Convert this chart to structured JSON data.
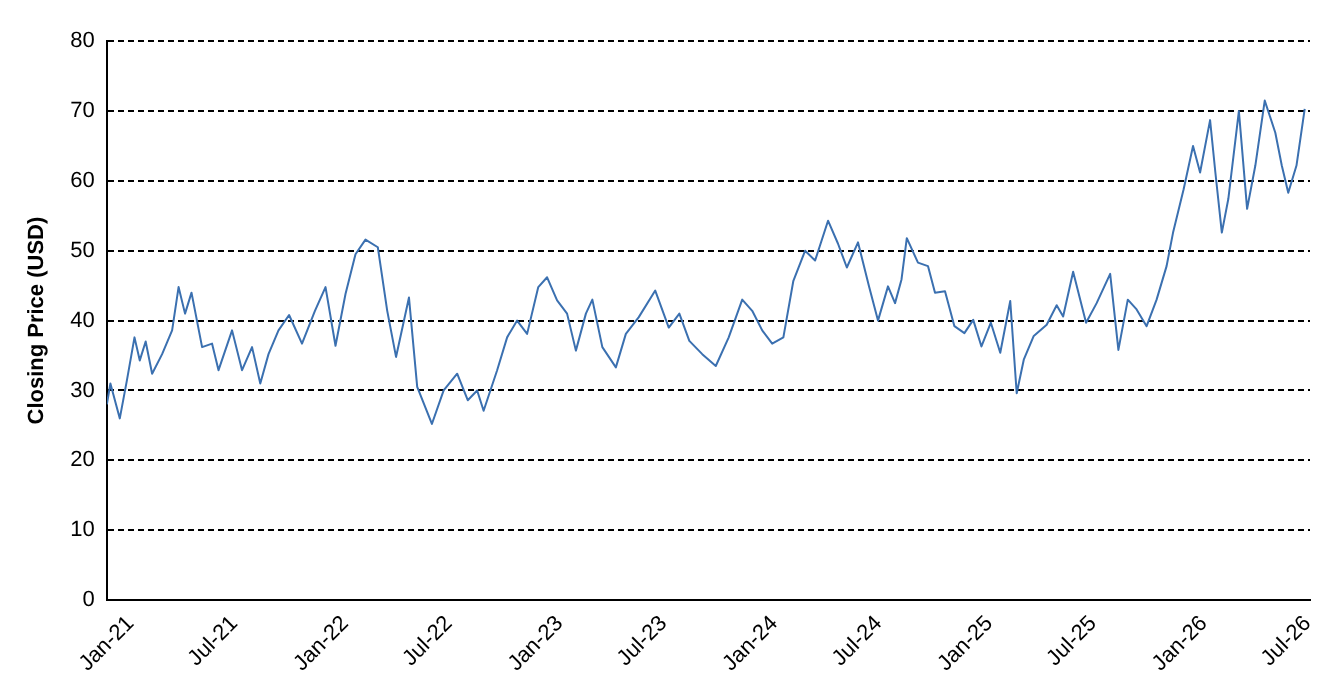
{
  "chart_data": {
    "type": "line",
    "ylabel": "Closing Price (USD)",
    "grid": "y",
    "legend": false,
    "x": [
      "2021-01-01",
      "2021-01-07",
      "2021-01-23",
      "2021-02-04",
      "2021-02-17",
      "2021-02-26",
      "2021-03-08",
      "2021-03-19",
      "2021-04-05",
      "2021-04-22",
      "2021-05-03",
      "2021-05-14",
      "2021-05-25",
      "2021-06-12",
      "2021-06-29",
      "2021-07-10",
      "2021-08-02",
      "2021-08-19",
      "2021-09-05",
      "2021-09-19",
      "2021-10-03",
      "2021-10-20",
      "2021-11-07",
      "2021-11-29",
      "2021-12-21",
      "2022-01-08",
      "2022-01-25",
      "2022-02-11",
      "2022-02-28",
      "2022-03-17",
      "2022-04-07",
      "2022-04-23",
      "2022-05-08",
      "2022-05-30",
      "2022-06-13",
      "2022-07-08",
      "2022-07-28",
      "2022-08-20",
      "2022-09-07",
      "2022-09-23",
      "2022-10-04",
      "2022-10-27",
      "2022-11-13",
      "2022-11-30",
      "2022-12-17",
      "2023-01-05",
      "2023-01-20",
      "2023-02-06",
      "2023-02-23",
      "2023-03-10",
      "2023-03-27",
      "2023-04-07",
      "2023-04-24",
      "2023-05-17",
      "2023-06-03",
      "2023-06-25",
      "2023-07-23",
      "2023-08-15",
      "2023-09-02",
      "2023-09-19",
      "2023-10-11",
      "2023-11-03",
      "2023-11-25",
      "2023-12-18",
      "2024-01-04",
      "2024-01-21",
      "2024-02-07",
      "2024-02-26",
      "2024-03-14",
      "2024-04-03",
      "2024-04-20",
      "2024-05-12",
      "2024-05-29",
      "2024-06-13",
      "2024-07-02",
      "2024-07-21",
      "2024-08-05",
      "2024-08-22",
      "2024-09-03",
      "2024-09-14",
      "2024-09-23",
      "2024-10-12",
      "2024-10-29",
      "2024-11-10",
      "2024-11-27",
      "2024-12-13",
      "2024-12-30",
      "2025-01-14",
      "2025-01-28",
      "2025-02-13",
      "2025-03-01",
      "2025-03-18",
      "2025-03-29",
      "2025-04-10",
      "2025-04-27",
      "2025-05-19",
      "2025-06-05",
      "2025-06-16",
      "2025-07-03",
      "2025-07-25",
      "2025-08-12",
      "2025-09-04",
      "2025-09-18",
      "2025-10-04",
      "2025-10-19",
      "2025-11-05",
      "2025-11-22",
      "2025-12-09",
      "2025-12-20",
      "2026-01-07",
      "2026-01-23",
      "2026-02-04",
      "2026-02-21",
      "2026-03-02",
      "2026-03-13",
      "2026-03-24",
      "2026-04-11",
      "2026-04-25",
      "2026-05-09",
      "2026-05-25",
      "2026-06-12",
      "2026-06-23",
      "2026-07-04",
      "2026-07-18",
      "2026-08-01"
    ],
    "series": [
      {
        "color": "#3b70b0",
        "values": [
          28,
          31,
          26,
          31.4,
          37.6,
          34.3,
          37,
          32.4,
          35.2,
          38.6,
          44.8,
          41,
          44,
          36.2,
          36.7,
          32.9,
          38.6,
          32.9,
          36.2,
          31,
          35.2,
          38.6,
          40.8,
          36.7,
          41.4,
          44.8,
          36.4,
          43.8,
          49.5,
          51.6,
          50.5,
          41.4,
          34.8,
          43.3,
          30.5,
          25.2,
          30,
          32.4,
          28.6,
          30,
          27.1,
          32.9,
          37.6,
          40,
          38.1,
          44.8,
          46.2,
          42.9,
          41,
          35.7,
          41,
          43,
          36.2,
          33.3,
          38.1,
          40.5,
          44.3,
          39,
          41,
          37.1,
          35.2,
          33.5,
          37.6,
          43,
          41.4,
          38.6,
          36.7,
          37.6,
          45.7,
          50,
          48.6,
          54.3,
          51,
          47.6,
          51.2,
          44.8,
          40,
          44.9,
          42.5,
          45.9,
          51.8,
          48.3,
          47.8,
          44,
          44.2,
          39.2,
          38.2,
          40.1,
          36.3,
          39.7,
          35.4,
          42.8,
          29.6,
          34.4,
          37.8,
          39.4,
          42.2,
          40.6,
          47,
          39.7,
          42.5,
          46.7,
          35.8,
          43,
          41.6,
          39.2,
          43,
          47.8,
          52.6,
          58.8,
          65,
          61.2,
          68.7,
          61.2,
          52.6,
          57.4,
          70,
          56,
          62.2,
          71.5,
          66.9,
          62.2,
          58.3,
          62.2,
          70.3
        ]
      }
    ],
    "xlim": [
      "2021-01-01",
      "2026-08-10"
    ],
    "xticks": [
      {
        "value": "2021-01-01",
        "label": "Jan-21"
      },
      {
        "value": "2021-07-01",
        "label": "Jul-21"
      },
      {
        "value": "2022-01-01",
        "label": "Jan-22"
      },
      {
        "value": "2022-07-01",
        "label": "Jul-22"
      },
      {
        "value": "2023-01-01",
        "label": "Jan-23"
      },
      {
        "value": "2023-07-01",
        "label": "Jul-23"
      },
      {
        "value": "2024-01-01",
        "label": "Jan-24"
      },
      {
        "value": "2024-07-01",
        "label": "Jul-24"
      },
      {
        "value": "2025-01-01",
        "label": "Jan-25"
      },
      {
        "value": "2025-07-01",
        "label": "Jul-25"
      },
      {
        "value": "2026-01-01",
        "label": "Jan-26"
      },
      {
        "value": "2026-07-01",
        "label": "Jul-26"
      }
    ],
    "ylim": [
      0,
      80
    ],
    "yticks": [
      0,
      10,
      20,
      30,
      40,
      50,
      60,
      70,
      80
    ]
  }
}
